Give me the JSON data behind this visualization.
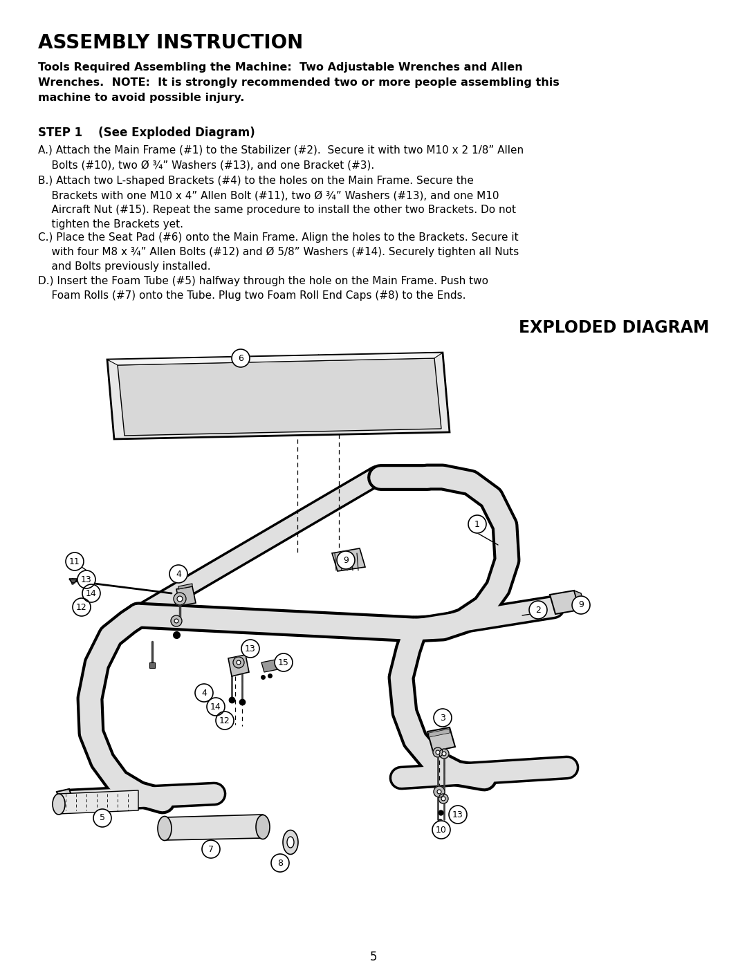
{
  "title": "ASSEMBLY INSTRUCTION",
  "tools_text": "Tools Required Assembling the Machine:  Two Adjustable Wrenches and Allen\nWrenches.  NOTE:  It is strongly recommended two or more people assembling this\nmachine to avoid possible injury.",
  "step1_header": "STEP 1    (See Exploded Diagram)",
  "step_A": "A.) Attach the Main Frame (#1) to the Stabilizer (#2).  Secure it with two M10 x 2 1/8” Allen\n    Bolts (#10), two Ø ¾” Washers (#13), and one Bracket (#3).",
  "step_B": "B.) Attach two L-shaped Brackets (#4) to the holes on the Main Frame. Secure the\n    Brackets with one M10 x 4” Allen Bolt (#11), two Ø ¾” Washers (#13), and one M10\n    Aircraft Nut (#15). Repeat the same procedure to install the other two Brackets. Do not\n    tighten the Brackets yet.",
  "step_C": "C.) Place the Seat Pad (#6) onto the Main Frame. Align the holes to the Brackets. Secure it\n    with four M8 x ¾” Allen Bolts (#12) and Ø 5/8” Washers (#14). Securely tighten all Nuts\n    and Bolts previously installed.",
  "step_D": "D.) Insert the Foam Tube (#5) halfway through the hole on the Main Frame. Push two\n    Foam Rolls (#7) onto the Tube. Plug two Foam Roll End Caps (#8) to the Ends.",
  "exploded_title": "EXPLODED DIAGRAM",
  "page_number": "5",
  "bg_color": "#ffffff",
  "text_color": "#000000"
}
